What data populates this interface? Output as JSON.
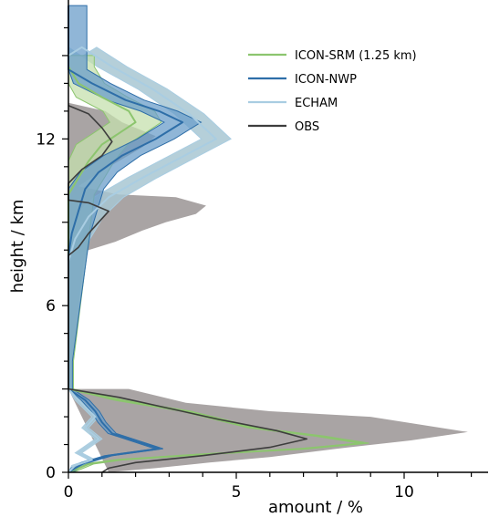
{
  "chart_data": {
    "type": "line",
    "xlabel": "amount / %",
    "ylabel": "height / km",
    "xlim": [
      0,
      12.5
    ],
    "ylim": [
      0,
      17
    ],
    "xticks": [
      "0",
      "5",
      "10"
    ],
    "yticks": [
      "0",
      "6",
      "12"
    ],
    "legend_position": "top-right",
    "series": [
      {
        "name": "ICON-SRM (1.25 km)",
        "color": "#8cc56e",
        "band_color": "#c5e0ad",
        "points": [
          [
            0,
            15.0
          ],
          [
            0,
            14.6
          ],
          [
            0.3,
            14.0
          ],
          [
            1.0,
            13.5
          ],
          [
            1.8,
            13.0
          ],
          [
            2.0,
            12.6
          ],
          [
            1.5,
            12.2
          ],
          [
            1.0,
            11.8
          ],
          [
            0.6,
            11.2
          ],
          [
            0.3,
            10.6
          ],
          [
            0,
            10.0
          ],
          [
            0,
            4.0
          ],
          [
            0,
            3.0
          ],
          [
            1.5,
            2.6
          ],
          [
            3.5,
            2.2
          ],
          [
            5.5,
            1.6
          ],
          [
            7.5,
            1.3
          ],
          [
            8.8,
            1.05
          ],
          [
            7.0,
            0.85
          ],
          [
            4.0,
            0.65
          ],
          [
            1.5,
            0.45
          ],
          [
            0.6,
            0.3
          ],
          [
            0.3,
            0.15
          ],
          [
            0,
            0
          ]
        ],
        "band_width": [
          0.35,
          0.15
        ]
      },
      {
        "name": "ICON-NWP",
        "color": "#2e6ea8",
        "band_color": "#6b9ec9",
        "points": [
          [
            0,
            16.8
          ],
          [
            0,
            14.5
          ],
          [
            0.7,
            14.0
          ],
          [
            1.7,
            13.4
          ],
          [
            2.7,
            13.0
          ],
          [
            3.4,
            12.6
          ],
          [
            2.6,
            12.0
          ],
          [
            1.6,
            11.4
          ],
          [
            0.9,
            10.8
          ],
          [
            0.5,
            10.2
          ],
          [
            0.3,
            9.4
          ],
          [
            0.1,
            8.6
          ],
          [
            0,
            7.8
          ],
          [
            0,
            4.0
          ],
          [
            0,
            3.0
          ],
          [
            0.5,
            2.6
          ],
          [
            0.8,
            2.2
          ],
          [
            1.0,
            1.8
          ],
          [
            1.3,
            1.4
          ],
          [
            2.7,
            0.85
          ],
          [
            1.2,
            0.6
          ],
          [
            0.5,
            0.35
          ],
          [
            0.2,
            0.15
          ],
          [
            0,
            0
          ]
        ],
        "band_width": [
          0.25,
          0.12
        ]
      },
      {
        "name": "ECHAM",
        "color": "#a9cde2",
        "band_color": "#a8c7d2",
        "points": [
          [
            0,
            15.0
          ],
          [
            0.4,
            15.3
          ],
          [
            1.3,
            14.6
          ],
          [
            2.5,
            13.8
          ],
          [
            3.6,
            12.9
          ],
          [
            4.4,
            12.0
          ],
          [
            3.3,
            11.3
          ],
          [
            2.2,
            10.6
          ],
          [
            1.2,
            9.9
          ],
          [
            0.6,
            9.2
          ],
          [
            0.2,
            8.4
          ],
          [
            0,
            7.6
          ],
          [
            0,
            4.0
          ],
          [
            0,
            3.0
          ],
          [
            0.3,
            2.6
          ],
          [
            0.8,
            2.0
          ],
          [
            0.5,
            1.6
          ],
          [
            0.9,
            1.2
          ],
          [
            0.3,
            0.7
          ],
          [
            0.7,
            0.45
          ],
          [
            0.2,
            0.25
          ],
          [
            0,
            0
          ]
        ],
        "band_width": [
          0.2,
          0.1
        ]
      },
      {
        "name": "OBS",
        "color": "#3d3d3d",
        "band_color": "#a9a4a4",
        "points": [
          [
            0,
            13.2
          ],
          [
            0.6,
            12.9
          ],
          [
            1.0,
            12.4
          ],
          [
            1.3,
            11.9
          ],
          [
            1.0,
            11.4
          ],
          [
            0.4,
            10.9
          ],
          [
            0,
            10.4
          ],
          [
            0,
            9.8
          ],
          [
            0.6,
            9.7
          ],
          [
            1.2,
            9.4
          ],
          [
            0.9,
            9.0
          ],
          [
            0.6,
            8.6
          ],
          [
            0.3,
            8.1
          ],
          [
            0,
            7.8
          ],
          [
            0,
            4.0
          ],
          [
            0,
            3.0
          ],
          [
            1.5,
            2.7
          ],
          [
            3.0,
            2.3
          ],
          [
            4.5,
            1.9
          ],
          [
            6.2,
            1.5
          ],
          [
            7.1,
            1.2
          ],
          [
            6.0,
            0.9
          ],
          [
            4.0,
            0.6
          ],
          [
            2.0,
            0.35
          ],
          [
            1.2,
            0.15
          ],
          [
            1.0,
            0
          ]
        ],
        "band_width": [
          0.4,
          0.3
        ]
      }
    ],
    "obs_spread": {
      "upper_right": [
        [
          0,
          13.3
        ],
        [
          1.1,
          13.0
        ],
        [
          1.6,
          12.6
        ],
        [
          2.6,
          12.1
        ],
        [
          2.2,
          11.7
        ],
        [
          1.5,
          11.2
        ],
        [
          0.8,
          10.7
        ],
        [
          0.3,
          10.3
        ],
        [
          1.5,
          10.0
        ],
        [
          3.2,
          9.9
        ],
        [
          4.1,
          9.6
        ],
        [
          3.8,
          9.3
        ],
        [
          2.9,
          9.0
        ],
        [
          2.2,
          8.7
        ],
        [
          1.4,
          8.3
        ],
        [
          0.6,
          8.0
        ],
        [
          0,
          7.8
        ]
      ],
      "lower_right": [
        [
          0,
          3.0
        ],
        [
          1.8,
          3.0
        ],
        [
          3.5,
          2.5
        ],
        [
          6.0,
          2.2
        ],
        [
          9.0,
          2.0
        ],
        [
          11.9,
          1.45
        ],
        [
          10.2,
          1.15
        ],
        [
          8.0,
          0.85
        ],
        [
          6.0,
          0.55
        ],
        [
          4.2,
          0.35
        ],
        [
          2.6,
          0.15
        ],
        [
          1.2,
          0
        ]
      ]
    }
  }
}
